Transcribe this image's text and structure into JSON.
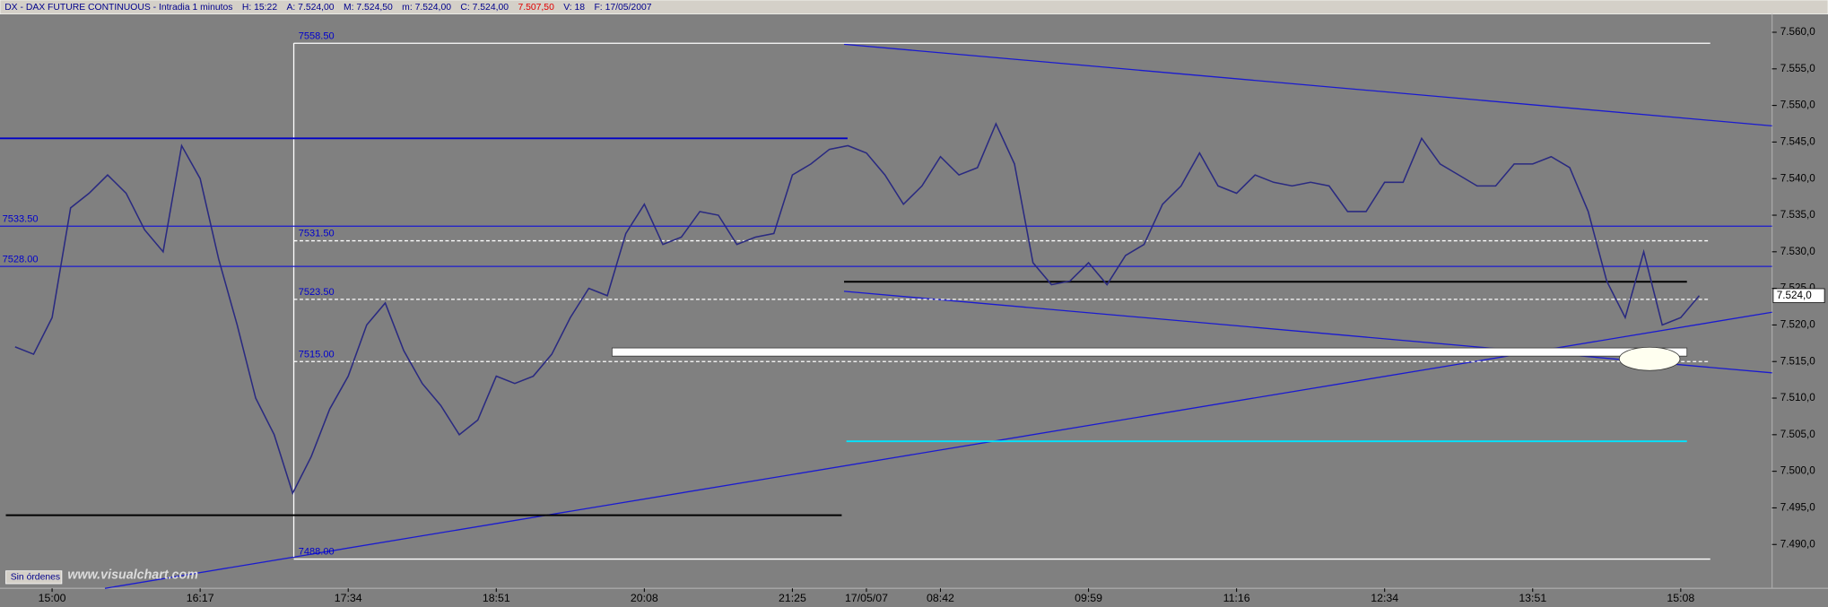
{
  "chart_data": {
    "type": "line",
    "title": "DX - DAX FUTURE CONTINUOUS - Intradia 1 minutos",
    "header_items": [
      {
        "text": "H: 15:22",
        "color": "#00008b"
      },
      {
        "text": "A: 7.524,00",
        "color": "#00008b"
      },
      {
        "text": "M: 7.524,50",
        "color": "#00008b"
      },
      {
        "text": "m: 7.524,00",
        "color": "#00008b"
      },
      {
        "text": "C: 7.524,00",
        "color": "#00008b"
      },
      {
        "text": "7.507,50",
        "color": "#e00000"
      },
      {
        "text": "V: 18",
        "color": "#00008b"
      },
      {
        "text": "F: 17/05/2007",
        "color": "#00008b"
      }
    ],
    "categories": [
      null,
      null,
      "15:00",
      null,
      null,
      null,
      null,
      null,
      null,
      null,
      "16:17",
      null,
      null,
      null,
      null,
      null,
      null,
      null,
      "17:34",
      null,
      null,
      null,
      null,
      null,
      null,
      null,
      "18:51",
      null,
      null,
      null,
      null,
      null,
      null,
      null,
      "20:08",
      null,
      null,
      null,
      null,
      null,
      null,
      null,
      "21:25",
      null,
      null,
      null,
      "17/05/07",
      null,
      null,
      null,
      "08:42",
      null,
      null,
      null,
      null,
      null,
      null,
      null,
      "09:59",
      null,
      null,
      null,
      null,
      null,
      null,
      null,
      "11:16",
      null,
      null,
      null,
      null,
      null,
      null,
      null,
      "12:34",
      null,
      null,
      null,
      null,
      null,
      null,
      null,
      "13:51",
      null,
      null,
      null,
      null,
      null,
      null,
      null,
      "15:08",
      null
    ],
    "values": [
      7517,
      7516,
      7521,
      7536,
      7538,
      7540.5,
      7538,
      7533,
      7530,
      7544.5,
      7540,
      7529,
      7520,
      7510,
      7505,
      7497,
      7502,
      7508.5,
      7513,
      7520,
      7523,
      7516.5,
      7512,
      7509,
      7505,
      7507,
      7513,
      7512,
      7513,
      7516,
      7521,
      7525,
      7524,
      7532.5,
      7536.5,
      7531,
      7532,
      7535.5,
      7535,
      7531,
      7532,
      7532.5,
      7540.5,
      7542,
      7544,
      7544.5,
      7543.5,
      7540.5,
      7536.5,
      7539,
      7543,
      7540.5,
      7541.5,
      7547.5,
      7542,
      7528.5,
      7525.5,
      7526,
      7528.5,
      7525.5,
      7529.5,
      7531,
      7536.5,
      7539,
      7543.5,
      7539,
      7538,
      7540.5,
      7539.5,
      7539,
      7539.5,
      7539,
      7535.5,
      7535.5,
      7539.5,
      7539.5,
      7545.5,
      7542,
      7540.5,
      7539,
      7539,
      7542,
      7542,
      7543,
      7541.5,
      7535.5,
      7526,
      7521,
      7530,
      7520,
      7521,
      7524
    ],
    "color": "#2a2a80",
    "ylim": [
      7484,
      7562.5
    ],
    "yticks": [
      {
        "value": 7490,
        "label": "7.490,0"
      },
      {
        "value": 7495,
        "label": "7.495,0"
      },
      {
        "value": 7500,
        "label": "7.500,0"
      },
      {
        "value": 7505,
        "label": "7.505,0"
      },
      {
        "value": 7510,
        "label": "7.510,0"
      },
      {
        "value": 7515,
        "label": "7.515,0"
      },
      {
        "value": 7520,
        "label": "7.520,0"
      },
      {
        "value": 7525,
        "label": "7.525,0"
      },
      {
        "value": 7530,
        "label": "7.530,0"
      },
      {
        "value": 7535,
        "label": "7.535,0"
      },
      {
        "value": 7540,
        "label": "7.540,0"
      },
      {
        "value": 7545,
        "label": "7.545,0"
      },
      {
        "value": 7550,
        "label": "7.550,0"
      },
      {
        "value": 7555,
        "label": "7.555,0"
      },
      {
        "value": 7560,
        "label": "7.560,0"
      }
    ],
    "levels": [
      {
        "value": 7558.5,
        "label": "7558.50",
        "style": "solid"
      },
      {
        "value": 7531.5,
        "label": "7531.50",
        "style": "dashed"
      },
      {
        "value": 7523.5,
        "label": "7523.50",
        "style": "dashed"
      },
      {
        "value": 7515,
        "label": "7515.00",
        "style": "dashed"
      },
      {
        "value": 7488,
        "label": "7488.00",
        "style": "solid"
      }
    ],
    "price_lines": [
      {
        "value": 7533.5,
        "label": "7533.50"
      },
      {
        "value": 7528,
        "label": "7528.00"
      }
    ],
    "drawn_levels": [
      {
        "value": 7545.5,
        "color": "#0000c8"
      },
      {
        "value": 7494,
        "color": "#000000"
      },
      {
        "value": 7525.9,
        "color": "#000000"
      },
      {
        "value": 7504.1,
        "color": "#00e5ff"
      },
      {
        "value": 7516.3,
        "color": "#ffffff"
      }
    ],
    "last_price": {
      "value": 7524,
      "label": "7.524,0"
    },
    "status": "Sin órdenes",
    "watermark": "www.visualchart.com"
  }
}
